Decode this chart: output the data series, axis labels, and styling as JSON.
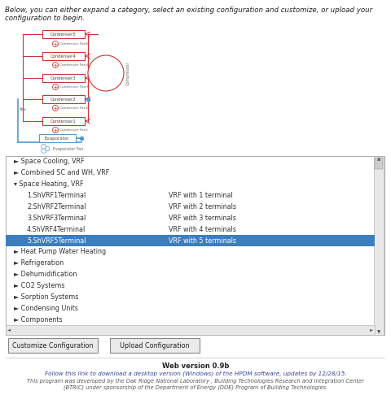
{
  "header_text": "Below, you can either expand a category, select an existing configuration and customize, or upload your configuration to begin.",
  "list_items": [
    {
      "text": "► Space Cooling, VRF",
      "indent": 0,
      "selected": false,
      "right_text": ""
    },
    {
      "text": "► Combined SC and WH, VRF",
      "indent": 0,
      "selected": false,
      "right_text": ""
    },
    {
      "text": "▾ Space Heating, VRF",
      "indent": 0,
      "selected": false,
      "right_text": ""
    },
    {
      "text": "1.ShVRF1Terminal",
      "indent": 1,
      "selected": false,
      "right_text": "VRF with 1 terminal"
    },
    {
      "text": "2.ShVRF2Terminal",
      "indent": 1,
      "selected": false,
      "right_text": "VRF with 2 terminals"
    },
    {
      "text": "3.ShVRF3Terminal",
      "indent": 1,
      "selected": false,
      "right_text": "VRF with 3 terminals"
    },
    {
      "text": "4.ShVRF4Terminal",
      "indent": 1,
      "selected": false,
      "right_text": "VRF with 4 terminals"
    },
    {
      "text": "5.ShVRF5Terminal",
      "indent": 1,
      "selected": true,
      "right_text": "VRF with 5 terminals"
    },
    {
      "text": "► Heat Pump Water Heating",
      "indent": 0,
      "selected": false,
      "right_text": ""
    },
    {
      "text": "► Refrigeration",
      "indent": 0,
      "selected": false,
      "right_text": ""
    },
    {
      "text": "► Dehumidification",
      "indent": 0,
      "selected": false,
      "right_text": ""
    },
    {
      "text": "► CO2 Systems",
      "indent": 0,
      "selected": false,
      "right_text": ""
    },
    {
      "text": "► Sorption Systems",
      "indent": 0,
      "selected": false,
      "right_text": ""
    },
    {
      "text": "► Condensing Units",
      "indent": 0,
      "selected": false,
      "right_text": ""
    },
    {
      "text": "► Components",
      "indent": 0,
      "selected": false,
      "right_text": ""
    }
  ],
  "button1": "Customize Configuration",
  "button2": "Upload Configuration",
  "version_text": "Web version 0.9b",
  "link_text": "Follow this link to download a desktop version (Windows) of the HPDM software, updates by 12/28/15.",
  "footer_line1": "This program was developed by the Oak Ridge National Laboratory , Building Technologies Research and Integration Center",
  "footer_line2": "(BTRIC) under sponsorship of the Department of Energy (DOE) Program of Building Technologies.",
  "bg_color": "#ffffff",
  "selected_color": "#3d7ebf",
  "border_color": "#aaaaaa",
  "text_color": "#333333",
  "red_color": "#cc3333",
  "blue_color": "#5599cc",
  "diagram_text_color": "#666666",
  "condenser_labels": [
    "Condenser5",
    "Condenser4",
    "Condenser3",
    "Condenser2",
    "Condenser1"
  ],
  "fan_labels": [
    "Condenser Fan5",
    "Condenser Fan4",
    "Condenser Fan3",
    "Condenser Fan2",
    "Condenser Fan1"
  ],
  "key_label": "Key",
  "compressor_label": "Compressor",
  "evaporator_label": "Evaporator",
  "evap_fan_label": "Evaporator Fan"
}
